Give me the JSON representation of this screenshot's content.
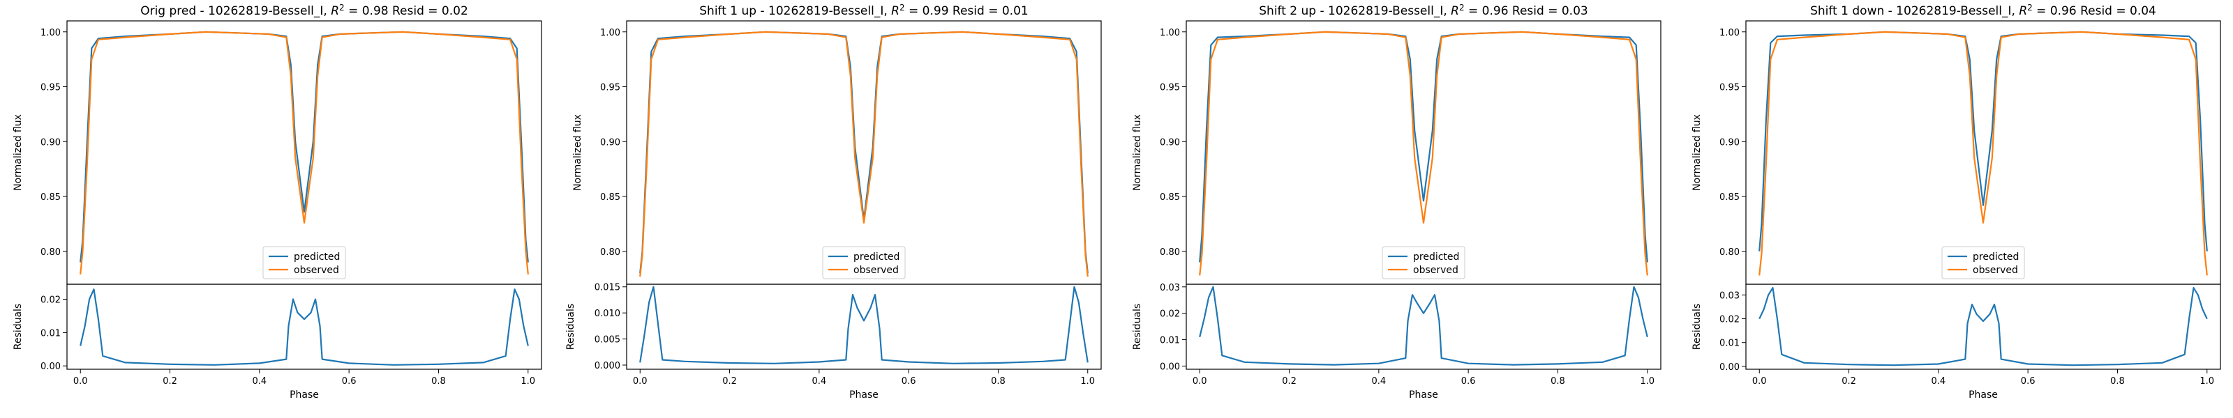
{
  "colors": {
    "predicted": "#1f77b4",
    "observed": "#ff7f0e"
  },
  "chart_data": [
    {
      "type": "line",
      "title": "Orig pred - 10262819-Bessell_I, R² = 0.98 Resid = 0.02",
      "title_parts": {
        "prefix": "Orig pred - 10262819-Bessell_I, ",
        "r2": "0.98",
        "resid_label": " Resid = ",
        "resid": "0.02"
      },
      "xlabel": "Phase",
      "ylabel": "Normalized flux",
      "resid_ylabel": "Residuals",
      "xlim": [
        -0.03,
        1.03
      ],
      "ylim": [
        0.77,
        1.01
      ],
      "resid_ylim": [
        -0.001,
        0.0245
      ],
      "x_ticks": [
        "0.0",
        "0.2",
        "0.4",
        "0.6",
        "0.8",
        "1.0"
      ],
      "y_ticks": [
        "0.80",
        "0.85",
        "0.90",
        "0.95",
        "1.00"
      ],
      "resid_ticks": [
        "0.00",
        "0.01",
        "0.02"
      ],
      "legend": {
        "position": "lower-center",
        "entries": [
          "predicted",
          "observed"
        ]
      },
      "series": [
        {
          "name": "predicted",
          "x": [
            0.0,
            0.005,
            0.015,
            0.025,
            0.04,
            0.1,
            0.2,
            0.28,
            0.35,
            0.42,
            0.46,
            0.47,
            0.48,
            0.5,
            0.52,
            0.53,
            0.54,
            0.58,
            0.65,
            0.72,
            0.8,
            0.9,
            0.96,
            0.975,
            0.985,
            0.995,
            1.0
          ],
          "y": [
            0.79,
            0.81,
            0.9,
            0.985,
            0.994,
            0.996,
            0.998,
            1.0,
            0.999,
            0.998,
            0.996,
            0.97,
            0.9,
            0.836,
            0.9,
            0.97,
            0.996,
            0.998,
            0.999,
            1.0,
            0.998,
            0.996,
            0.994,
            0.985,
            0.9,
            0.81,
            0.79
          ]
        },
        {
          "name": "observed",
          "x": [
            0.0,
            0.005,
            0.015,
            0.025,
            0.04,
            0.1,
            0.2,
            0.28,
            0.35,
            0.42,
            0.46,
            0.47,
            0.48,
            0.5,
            0.52,
            0.53,
            0.54,
            0.58,
            0.65,
            0.72,
            0.8,
            0.9,
            0.96,
            0.975,
            0.985,
            0.995,
            1.0
          ],
          "y": [
            0.779,
            0.8,
            0.88,
            0.975,
            0.993,
            0.995,
            0.998,
            1.0,
            0.999,
            0.998,
            0.995,
            0.96,
            0.885,
            0.826,
            0.885,
            0.96,
            0.995,
            0.998,
            0.999,
            1.0,
            0.998,
            0.995,
            0.993,
            0.975,
            0.88,
            0.8,
            0.779
          ]
        }
      ],
      "residuals": {
        "name": "residuals",
        "x": [
          0.0,
          0.01,
          0.02,
          0.03,
          0.04,
          0.05,
          0.1,
          0.2,
          0.3,
          0.4,
          0.46,
          0.465,
          0.475,
          0.485,
          0.5,
          0.515,
          0.525,
          0.535,
          0.54,
          0.6,
          0.7,
          0.8,
          0.9,
          0.95,
          0.96,
          0.97,
          0.98,
          0.99,
          1.0
        ],
        "y": [
          0.006,
          0.012,
          0.02,
          0.023,
          0.014,
          0.003,
          0.001,
          0.0005,
          0.0003,
          0.0008,
          0.002,
          0.012,
          0.02,
          0.016,
          0.014,
          0.016,
          0.02,
          0.012,
          0.002,
          0.0008,
          0.0003,
          0.0005,
          0.001,
          0.003,
          0.014,
          0.023,
          0.02,
          0.012,
          0.006
        ]
      }
    },
    {
      "type": "line",
      "title": "Shift 1 up - 10262819-Bessell_I, R² = 0.99 Resid = 0.01",
      "title_parts": {
        "prefix": "Shift 1 up - 10262819-Bessell_I, ",
        "r2": "0.99",
        "resid_label": " Resid = ",
        "resid": "0.01"
      },
      "xlabel": "Phase",
      "ylabel": "Normalized flux",
      "resid_ylabel": "Residuals",
      "xlim": [
        -0.03,
        1.03
      ],
      "ylim": [
        0.77,
        1.01
      ],
      "resid_ylim": [
        -0.0008,
        0.0155
      ],
      "x_ticks": [
        "0.0",
        "0.2",
        "0.4",
        "0.6",
        "0.8",
        "1.0"
      ],
      "y_ticks": [
        "0.80",
        "0.85",
        "0.90",
        "0.95",
        "1.00"
      ],
      "resid_ticks": [
        "0.000",
        "0.005",
        "0.010",
        "0.015"
      ],
      "legend": {
        "position": "lower-center",
        "entries": [
          "predicted",
          "observed"
        ]
      },
      "series": [
        {
          "name": "predicted",
          "x": [
            0.0,
            0.005,
            0.015,
            0.025,
            0.04,
            0.1,
            0.2,
            0.28,
            0.35,
            0.42,
            0.46,
            0.47,
            0.48,
            0.5,
            0.52,
            0.53,
            0.54,
            0.58,
            0.65,
            0.72,
            0.8,
            0.9,
            0.96,
            0.975,
            0.985,
            0.995,
            1.0
          ],
          "y": [
            0.78,
            0.8,
            0.89,
            0.982,
            0.994,
            0.996,
            0.998,
            1.0,
            0.999,
            0.998,
            0.996,
            0.968,
            0.895,
            0.829,
            0.895,
            0.968,
            0.996,
            0.998,
            0.999,
            1.0,
            0.998,
            0.996,
            0.994,
            0.982,
            0.89,
            0.8,
            0.78
          ]
        },
        {
          "name": "observed",
          "x": [
            0.0,
            0.005,
            0.015,
            0.025,
            0.04,
            0.1,
            0.2,
            0.28,
            0.35,
            0.42,
            0.46,
            0.47,
            0.48,
            0.5,
            0.52,
            0.53,
            0.54,
            0.58,
            0.65,
            0.72,
            0.8,
            0.9,
            0.96,
            0.975,
            0.985,
            0.995,
            1.0
          ],
          "y": [
            0.777,
            0.797,
            0.88,
            0.975,
            0.993,
            0.995,
            0.998,
            1.0,
            0.999,
            0.998,
            0.995,
            0.96,
            0.885,
            0.826,
            0.885,
            0.96,
            0.995,
            0.998,
            0.999,
            1.0,
            0.998,
            0.995,
            0.993,
            0.975,
            0.88,
            0.797,
            0.777
          ]
        }
      ],
      "residuals": {
        "name": "residuals",
        "x": [
          0.0,
          0.01,
          0.02,
          0.03,
          0.04,
          0.05,
          0.1,
          0.2,
          0.3,
          0.4,
          0.46,
          0.465,
          0.475,
          0.485,
          0.5,
          0.515,
          0.525,
          0.535,
          0.54,
          0.6,
          0.7,
          0.8,
          0.9,
          0.95,
          0.96,
          0.97,
          0.98,
          0.99,
          1.0
        ],
        "y": [
          0.0005,
          0.006,
          0.012,
          0.015,
          0.008,
          0.001,
          0.0007,
          0.0004,
          0.0003,
          0.0006,
          0.001,
          0.007,
          0.0135,
          0.011,
          0.0085,
          0.011,
          0.0135,
          0.007,
          0.001,
          0.0006,
          0.0003,
          0.0004,
          0.0007,
          0.001,
          0.008,
          0.015,
          0.012,
          0.006,
          0.0005
        ]
      }
    },
    {
      "type": "line",
      "title": "Shift 2 up - 10262819-Bessell_I, R² = 0.96 Resid = 0.03",
      "title_parts": {
        "prefix": "Shift 2 up - 10262819-Bessell_I, ",
        "r2": "0.96",
        "resid_label": " Resid = ",
        "resid": "0.03"
      },
      "xlabel": "Phase",
      "ylabel": "Normalized flux",
      "resid_ylabel": "Residuals",
      "xlim": [
        -0.03,
        1.03
      ],
      "ylim": [
        0.77,
        1.01
      ],
      "resid_ylim": [
        -0.0012,
        0.031
      ],
      "x_ticks": [
        "0.0",
        "0.2",
        "0.4",
        "0.6",
        "0.8",
        "1.0"
      ],
      "y_ticks": [
        "0.80",
        "0.85",
        "0.90",
        "0.95",
        "1.00"
      ],
      "resid_ticks": [
        "0.00",
        "0.01",
        "0.02",
        "0.03"
      ],
      "legend": {
        "position": "lower-center",
        "entries": [
          "predicted",
          "observed"
        ]
      },
      "series": [
        {
          "name": "predicted",
          "x": [
            0.0,
            0.005,
            0.015,
            0.025,
            0.04,
            0.1,
            0.2,
            0.28,
            0.35,
            0.42,
            0.46,
            0.47,
            0.48,
            0.5,
            0.52,
            0.53,
            0.54,
            0.58,
            0.65,
            0.72,
            0.8,
            0.9,
            0.96,
            0.975,
            0.985,
            0.995,
            1.0
          ],
          "y": [
            0.79,
            0.815,
            0.91,
            0.988,
            0.995,
            0.996,
            0.998,
            1.0,
            0.999,
            0.998,
            0.996,
            0.975,
            0.91,
            0.846,
            0.91,
            0.975,
            0.996,
            0.998,
            0.999,
            1.0,
            0.998,
            0.996,
            0.995,
            0.988,
            0.91,
            0.815,
            0.79
          ]
        },
        {
          "name": "observed",
          "x": [
            0.0,
            0.005,
            0.015,
            0.025,
            0.04,
            0.1,
            0.2,
            0.28,
            0.35,
            0.42,
            0.46,
            0.47,
            0.48,
            0.5,
            0.52,
            0.53,
            0.54,
            0.58,
            0.65,
            0.72,
            0.8,
            0.9,
            0.96,
            0.975,
            0.985,
            0.995,
            1.0
          ],
          "y": [
            0.778,
            0.798,
            0.88,
            0.975,
            0.993,
            0.995,
            0.998,
            1.0,
            0.999,
            0.998,
            0.995,
            0.96,
            0.885,
            0.826,
            0.885,
            0.96,
            0.995,
            0.998,
            0.999,
            1.0,
            0.998,
            0.995,
            0.993,
            0.975,
            0.88,
            0.798,
            0.778
          ]
        }
      ],
      "residuals": {
        "name": "residuals",
        "x": [
          0.0,
          0.01,
          0.02,
          0.03,
          0.04,
          0.05,
          0.1,
          0.2,
          0.3,
          0.4,
          0.46,
          0.465,
          0.475,
          0.485,
          0.5,
          0.515,
          0.525,
          0.535,
          0.54,
          0.6,
          0.7,
          0.8,
          0.9,
          0.95,
          0.96,
          0.97,
          0.98,
          0.99,
          1.0
        ],
        "y": [
          0.011,
          0.018,
          0.026,
          0.03,
          0.018,
          0.004,
          0.0015,
          0.0008,
          0.0005,
          0.001,
          0.003,
          0.017,
          0.027,
          0.024,
          0.02,
          0.024,
          0.027,
          0.017,
          0.003,
          0.001,
          0.0005,
          0.0008,
          0.0015,
          0.004,
          0.018,
          0.03,
          0.026,
          0.018,
          0.011
        ]
      }
    },
    {
      "type": "line",
      "title": "Shift 1 down - 10262819-Bessell_I, R² = 0.96 Resid = 0.04",
      "title_parts": {
        "prefix": "Shift 1 down - 10262819-Bessell_I, ",
        "r2": "0.96",
        "resid_label": " Resid = ",
        "resid": "0.04"
      },
      "xlabel": "Phase",
      "ylabel": "Normalized flux",
      "resid_ylabel": "Residuals",
      "xlim": [
        -0.03,
        1.03
      ],
      "ylim": [
        0.77,
        1.01
      ],
      "resid_ylim": [
        -0.0012,
        0.0345
      ],
      "x_ticks": [
        "0.0",
        "0.2",
        "0.4",
        "0.6",
        "0.8",
        "1.0"
      ],
      "y_ticks": [
        "0.80",
        "0.85",
        "0.90",
        "0.95",
        "1.00"
      ],
      "resid_ticks": [
        "0.00",
        "0.01",
        "0.02",
        "0.03"
      ],
      "legend": {
        "position": "lower-center",
        "entries": [
          "predicted",
          "observed"
        ]
      },
      "series": [
        {
          "name": "predicted",
          "x": [
            0.0,
            0.005,
            0.015,
            0.025,
            0.04,
            0.1,
            0.2,
            0.28,
            0.35,
            0.42,
            0.46,
            0.47,
            0.48,
            0.5,
            0.52,
            0.53,
            0.54,
            0.58,
            0.65,
            0.72,
            0.8,
            0.9,
            0.96,
            0.975,
            0.985,
            0.995,
            1.0
          ],
          "y": [
            0.8,
            0.825,
            0.92,
            0.99,
            0.996,
            0.997,
            0.998,
            1.0,
            0.999,
            0.998,
            0.996,
            0.975,
            0.91,
            0.842,
            0.91,
            0.975,
            0.996,
            0.998,
            0.999,
            1.0,
            0.998,
            0.997,
            0.996,
            0.99,
            0.92,
            0.825,
            0.8
          ]
        },
        {
          "name": "observed",
          "x": [
            0.0,
            0.005,
            0.015,
            0.025,
            0.04,
            0.1,
            0.2,
            0.28,
            0.35,
            0.42,
            0.46,
            0.47,
            0.48,
            0.5,
            0.52,
            0.53,
            0.54,
            0.58,
            0.65,
            0.72,
            0.8,
            0.9,
            0.96,
            0.975,
            0.985,
            0.995,
            1.0
          ],
          "y": [
            0.778,
            0.798,
            0.88,
            0.975,
            0.993,
            0.995,
            0.998,
            1.0,
            0.999,
            0.998,
            0.995,
            0.96,
            0.885,
            0.826,
            0.885,
            0.96,
            0.995,
            0.998,
            0.999,
            1.0,
            0.998,
            0.995,
            0.993,
            0.975,
            0.88,
            0.798,
            0.778
          ]
        }
      ],
      "residuals": {
        "name": "residuals",
        "x": [
          0.0,
          0.01,
          0.02,
          0.03,
          0.04,
          0.05,
          0.1,
          0.2,
          0.3,
          0.4,
          0.46,
          0.465,
          0.475,
          0.485,
          0.5,
          0.515,
          0.525,
          0.535,
          0.54,
          0.6,
          0.7,
          0.8,
          0.9,
          0.95,
          0.96,
          0.97,
          0.98,
          0.99,
          1.0
        ],
        "y": [
          0.02,
          0.024,
          0.03,
          0.033,
          0.02,
          0.005,
          0.0015,
          0.0008,
          0.0005,
          0.001,
          0.003,
          0.018,
          0.026,
          0.022,
          0.019,
          0.022,
          0.026,
          0.018,
          0.003,
          0.001,
          0.0005,
          0.0008,
          0.0015,
          0.005,
          0.02,
          0.033,
          0.03,
          0.024,
          0.02
        ]
      }
    }
  ]
}
